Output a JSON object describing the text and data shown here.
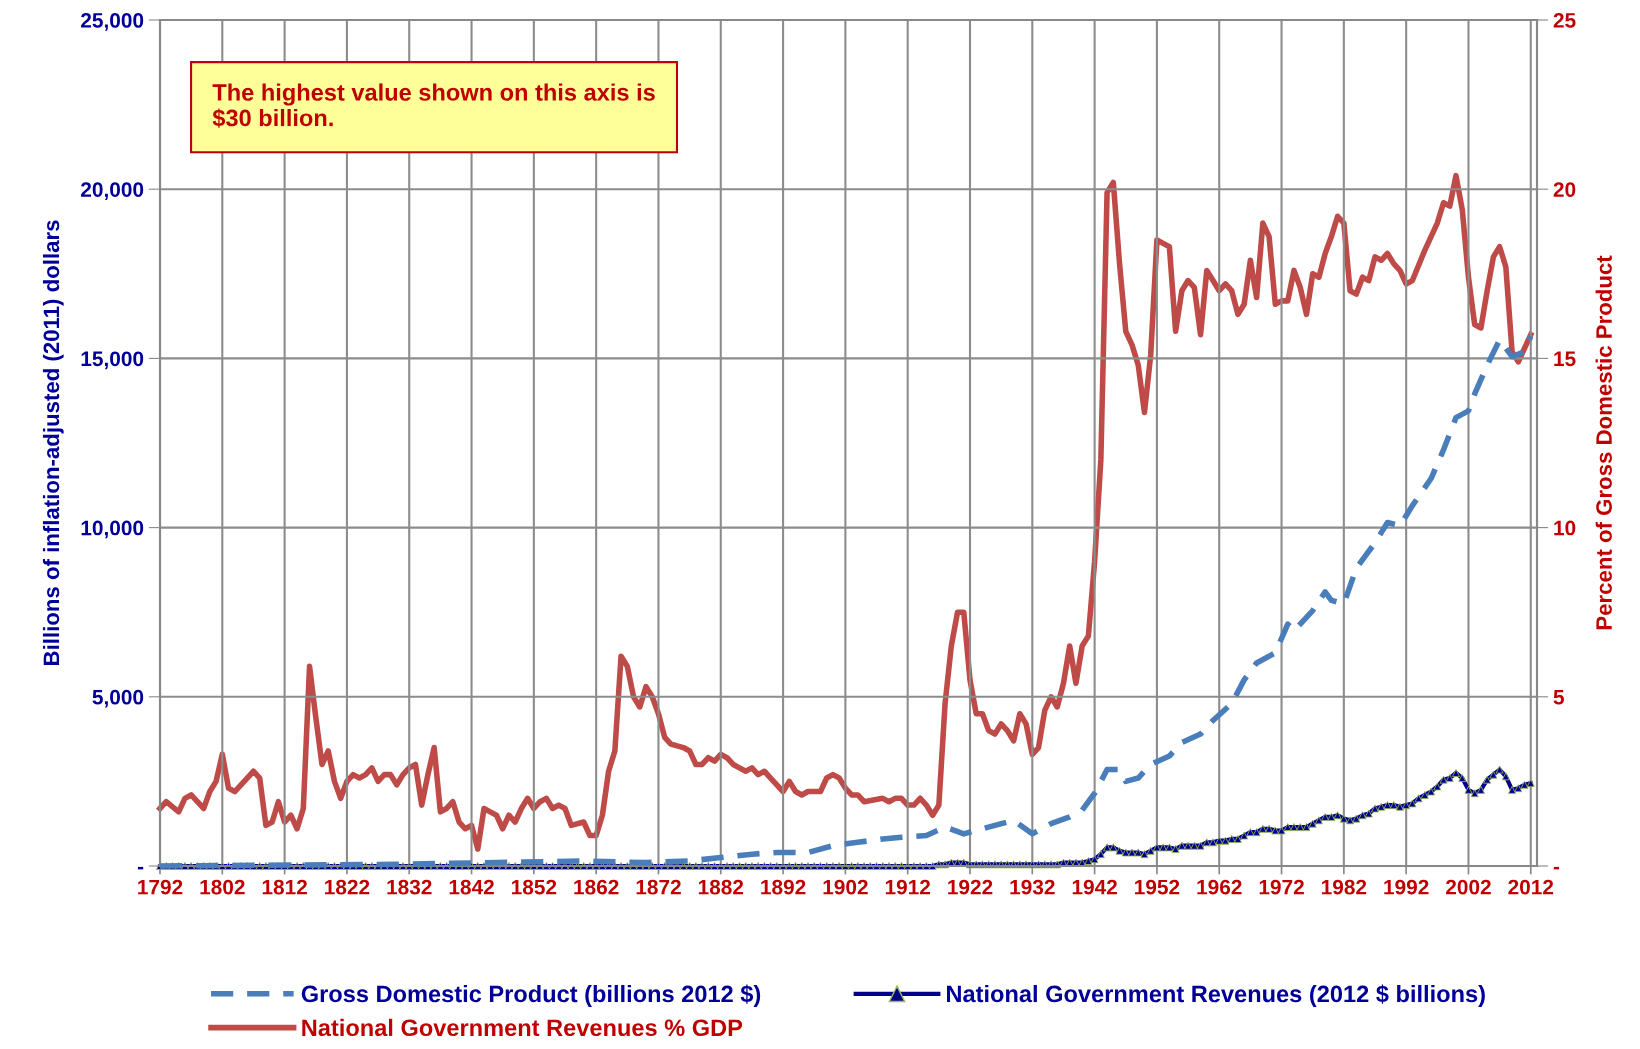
{
  "chart_data": {
    "type": "line",
    "ylabel": "Billions of inflation-adjusted (2011) dollars",
    "y2label": "Percent of Gross Domestic Product",
    "annotations": [
      "The highest value shown on this axis is $30 billion."
    ],
    "xlim": [
      1792,
      2013
    ],
    "xticks": [
      1792,
      1802,
      1812,
      1822,
      1832,
      1842,
      1852,
      1862,
      1872,
      1882,
      1892,
      1902,
      1912,
      1922,
      1932,
      1942,
      1952,
      1962,
      1972,
      1982,
      1992,
      2002,
      2012
    ],
    "ylim": [
      0,
      25000
    ],
    "yticks": [
      {
        "value": 0,
        "label": "-"
      },
      {
        "value": 5000,
        "label": "5,000"
      },
      {
        "value": 10000,
        "label": "10,000"
      },
      {
        "value": 15000,
        "label": "15,000"
      },
      {
        "value": 20000,
        "label": "20,000"
      },
      {
        "value": 25000,
        "label": "25,000"
      }
    ],
    "y2lim": [
      0,
      25
    ],
    "y2ticks": [
      {
        "value": 0,
        "label": "-"
      },
      5,
      10,
      15,
      20,
      25
    ],
    "grid": true,
    "legend": "bottom",
    "series": [
      {
        "name": "Gross Domestic Product (billions 2012 $)",
        "color": "#4a7ebb",
        "line_style": "dashed",
        "marker": "none",
        "x": [
          1792,
          1830,
          1860,
          1870,
          1877,
          1882,
          1887,
          1891,
          1896,
          1900,
          1904,
          1908,
          1911,
          1915,
          1918,
          1921,
          1926,
          1929,
          1932,
          1935,
          1938,
          1940,
          1942,
          1944,
          1946,
          1947,
          1949,
          1951,
          1954,
          1956,
          1959,
          1961,
          1964,
          1966,
          1968,
          1971,
          1973,
          1974,
          1977,
          1979,
          1980,
          1982,
          1984,
          1987,
          1989,
          1991,
          1993,
          1996,
          1998,
          2000,
          2002,
          2003,
          2005,
          2007,
          2009,
          2011,
          2012
        ],
        "values": [
          0,
          50,
          150,
          100,
          150,
          250,
          350,
          400,
          400,
          600,
          700,
          800,
          850,
          900,
          1150,
          950,
          1200,
          1350,
          950,
          1250,
          1450,
          1650,
          2150,
          2850,
          2850,
          2500,
          2600,
          3000,
          3250,
          3650,
          3900,
          4300,
          4800,
          5500,
          6000,
          6300,
          7150,
          6950,
          7550,
          8100,
          7850,
          7750,
          8800,
          9550,
          10150,
          10050,
          10650,
          11450,
          12300,
          13250,
          13450,
          13950,
          14800,
          15550,
          15050,
          15200,
          15650
        ]
      },
      {
        "name": "National Government Revenues (2012 $ billions)",
        "color": "#00008b",
        "line_style": "solid",
        "marker": "triangle",
        "x": [
          1792,
          1793,
          1794,
          1795,
          1796,
          1797,
          1798,
          1799,
          1800,
          1801,
          1802,
          1803,
          1804,
          1805,
          1806,
          1807,
          1808,
          1809,
          1810,
          1811,
          1812,
          1813,
          1814,
          1815,
          1816,
          1817,
          1818,
          1819,
          1820,
          1821,
          1822,
          1823,
          1824,
          1825,
          1826,
          1827,
          1828,
          1829,
          1830,
          1831,
          1832,
          1833,
          1834,
          1835,
          1836,
          1837,
          1838,
          1839,
          1840,
          1841,
          1842,
          1843,
          1844,
          1845,
          1846,
          1847,
          1848,
          1849,
          1850,
          1851,
          1852,
          1853,
          1854,
          1855,
          1856,
          1857,
          1858,
          1859,
          1860,
          1861,
          1862,
          1863,
          1864,
          1865,
          1866,
          1867,
          1868,
          1869,
          1870,
          1871,
          1872,
          1873,
          1874,
          1875,
          1876,
          1877,
          1878,
          1879,
          1880,
          1881,
          1882,
          1883,
          1884,
          1885,
          1886,
          1887,
          1888,
          1889,
          1890,
          1891,
          1892,
          1893,
          1894,
          1895,
          1896,
          1897,
          1898,
          1899,
          1900,
          1901,
          1902,
          1903,
          1904,
          1905,
          1906,
          1907,
          1908,
          1909,
          1910,
          1911,
          1912,
          1913,
          1914,
          1915,
          1916,
          1917,
          1918,
          1919,
          1920,
          1921,
          1922,
          1923,
          1924,
          1925,
          1926,
          1927,
          1928,
          1929,
          1930,
          1931,
          1932,
          1933,
          1934,
          1935,
          1936,
          1937,
          1938,
          1939,
          1940,
          1941,
          1942,
          1943,
          1944,
          1945,
          1946,
          1947,
          1948,
          1949,
          1950,
          1951,
          1952,
          1953,
          1954,
          1955,
          1956,
          1957,
          1958,
          1959,
          1960,
          1961,
          1962,
          1963,
          1964,
          1965,
          1966,
          1967,
          1968,
          1969,
          1970,
          1971,
          1972,
          1973,
          1974,
          1975,
          1976,
          1977,
          1978,
          1979,
          1980,
          1981,
          1982,
          1983,
          1984,
          1985,
          1986,
          1987,
          1988,
          1989,
          1990,
          1991,
          1992,
          1993,
          1994,
          1995,
          1996,
          1997,
          1998,
          1999,
          2000,
          2001,
          2002,
          2003,
          2004,
          2005,
          2006,
          2007,
          2008,
          2009,
          2010,
          2011,
          2012
        ],
        "values": [
          0,
          0,
          0,
          0,
          0,
          0,
          0,
          0,
          0,
          0,
          0,
          0,
          0,
          0,
          0,
          0,
          0,
          0,
          0,
          0,
          0,
          0,
          0,
          0,
          0,
          0,
          0,
          0,
          0,
          0,
          0,
          0,
          0,
          0,
          0,
          0,
          0,
          0,
          0,
          0,
          0,
          0,
          0,
          0,
          0,
          0,
          0,
          0,
          0,
          0,
          0,
          0,
          0,
          0,
          0,
          0,
          0,
          0,
          0,
          0,
          0,
          0,
          0,
          0,
          0,
          0,
          0,
          0,
          0,
          0,
          0,
          0,
          0,
          0,
          0,
          0,
          0,
          0,
          0,
          0,
          0,
          0,
          0,
          0,
          0,
          0,
          0,
          0,
          0,
          0,
          0,
          0,
          0,
          0,
          0,
          0,
          0,
          0,
          0,
          0,
          0,
          0,
          0,
          0,
          0,
          0,
          0,
          0,
          0,
          0,
          0,
          0,
          0,
          0,
          0,
          0,
          0,
          0,
          0,
          0,
          0,
          0,
          0,
          0,
          0,
          50,
          50,
          100,
          100,
          100,
          50,
          50,
          50,
          50,
          50,
          50,
          50,
          50,
          50,
          50,
          50,
          50,
          50,
          50,
          50,
          100,
          100,
          100,
          100,
          150,
          200,
          350,
          550,
          550,
          450,
          400,
          400,
          400,
          350,
          450,
          550,
          550,
          550,
          500,
          600,
          600,
          600,
          600,
          700,
          700,
          750,
          750,
          800,
          800,
          900,
          1000,
          1000,
          1100,
          1100,
          1050,
          1050,
          1150,
          1150,
          1150,
          1150,
          1250,
          1350,
          1450,
          1450,
          1500,
          1400,
          1350,
          1400,
          1500,
          1550,
          1700,
          1750,
          1800,
          1800,
          1750,
          1800,
          1850,
          2000,
          2100,
          2200,
          2350,
          2550,
          2600,
          2750,
          2600,
          2250,
          2150,
          2250,
          2550,
          2700,
          2850,
          2650,
          2250,
          2300,
          2400,
          2450
        ]
      },
      {
        "name": "National Government Revenues % GDP",
        "color": "#be4b48",
        "axis": "y2",
        "line_style": "solid",
        "marker": "none",
        "x": [
          1792,
          1793,
          1795,
          1796,
          1797,
          1799,
          1800,
          1801,
          1802,
          1803,
          1804,
          1805,
          1806,
          1807,
          1808,
          1809,
          1810,
          1811,
          1812,
          1813,
          1814,
          1815,
          1816,
          1817,
          1818,
          1819,
          1820,
          1821,
          1822,
          1823,
          1824,
          1825,
          1826,
          1827,
          1828,
          1829,
          1830,
          1831,
          1832,
          1833,
          1834,
          1835,
          1836,
          1837,
          1838,
          1839,
          1840,
          1841,
          1842,
          1843,
          1844,
          1845,
          1846,
          1847,
          1848,
          1849,
          1850,
          1851,
          1852,
          1853,
          1854,
          1855,
          1856,
          1857,
          1858,
          1860,
          1861,
          1862,
          1863,
          1864,
          1865,
          1866,
          1867,
          1868,
          1869,
          1870,
          1871,
          1872,
          1873,
          1874,
          1876,
          1877,
          1878,
          1879,
          1880,
          1881,
          1882,
          1883,
          1884,
          1885,
          1886,
          1887,
          1888,
          1889,
          1890,
          1891,
          1892,
          1893,
          1894,
          1895,
          1896,
          1898,
          1899,
          1900,
          1901,
          1902,
          1903,
          1904,
          1905,
          1908,
          1909,
          1910,
          1911,
          1912,
          1913,
          1914,
          1915,
          1916,
          1917,
          1918,
          1919,
          1920,
          1921,
          1922,
          1923,
          1924,
          1925,
          1926,
          1927,
          1928,
          1929,
          1930,
          1931,
          1932,
          1933,
          1934,
          1935,
          1936,
          1937,
          1938,
          1939,
          1940,
          1941,
          1942,
          1943,
          1944,
          1945,
          1946,
          1947,
          1948,
          1949,
          1950,
          1951,
          1952,
          1953,
          1954,
          1955,
          1956,
          1957,
          1958,
          1959,
          1960,
          1961,
          1962,
          1963,
          1964,
          1965,
          1966,
          1967,
          1968,
          1969,
          1970,
          1971,
          1972,
          1973,
          1974,
          1975,
          1976,
          1977,
          1978,
          1979,
          1980,
          1981,
          1982,
          1983,
          1984,
          1985,
          1986,
          1987,
          1988,
          1989,
          1990,
          1991,
          1992,
          1993,
          1995,
          1996,
          1997,
          1998,
          1999,
          2000,
          2001,
          2002,
          2003,
          2004,
          2005,
          2006,
          2007,
          2008,
          2009,
          2010,
          2011,
          2012
        ],
        "values": [
          1.7,
          1.9,
          1.6,
          2.0,
          2.1,
          1.7,
          2.2,
          2.5,
          3.3,
          2.3,
          2.2,
          2.4,
          2.6,
          2.8,
          2.6,
          1.2,
          1.3,
          1.9,
          1.3,
          1.5,
          1.1,
          1.7,
          5.9,
          4.4,
          3.0,
          3.4,
          2.5,
          2.0,
          2.5,
          2.7,
          2.6,
          2.7,
          2.9,
          2.5,
          2.7,
          2.7,
          2.4,
          2.7,
          2.9,
          3.0,
          1.8,
          2.7,
          3.5,
          1.6,
          1.7,
          1.9,
          1.3,
          1.1,
          1.2,
          0.5,
          1.7,
          1.6,
          1.5,
          1.1,
          1.5,
          1.3,
          1.7,
          2.0,
          1.7,
          1.9,
          2.0,
          1.7,
          1.8,
          1.7,
          1.2,
          1.3,
          0.9,
          0.9,
          1.5,
          2.8,
          3.4,
          6.2,
          5.9,
          5.0,
          4.7,
          5.3,
          5.0,
          4.5,
          3.8,
          3.6,
          3.5,
          3.4,
          3.0,
          3.0,
          3.2,
          3.1,
          3.3,
          3.2,
          3.0,
          2.9,
          2.8,
          2.9,
          2.7,
          2.8,
          2.6,
          2.4,
          2.2,
          2.5,
          2.2,
          2.1,
          2.2,
          2.2,
          2.6,
          2.7,
          2.6,
          2.3,
          2.1,
          2.1,
          1.9,
          2.0,
          1.9,
          2.0,
          2.0,
          1.8,
          1.8,
          2.0,
          1.8,
          1.5,
          1.8,
          4.8,
          6.5,
          7.5,
          7.5,
          5.5,
          4.5,
          4.5,
          4.0,
          3.9,
          4.2,
          4.0,
          3.7,
          4.5,
          4.2,
          3.3,
          3.5,
          4.6,
          5.0,
          4.7,
          5.4,
          6.5,
          5.4,
          6.5,
          6.8,
          9.0,
          12.0,
          19.9,
          20.2,
          17.8,
          15.8,
          15.4,
          14.8,
          13.4,
          15.1,
          18.5,
          18.4,
          18.3,
          15.8,
          17.0,
          17.3,
          17.1,
          15.7,
          17.6,
          17.3,
          17.0,
          17.2,
          17.0,
          16.3,
          16.6,
          17.9,
          16.8,
          19.0,
          18.6,
          16.6,
          16.7,
          16.7,
          17.6,
          17.1,
          16.3,
          17.5,
          17.4,
          18.1,
          18.6,
          19.2,
          19.0,
          17.0,
          16.9,
          17.4,
          17.3,
          18.0,
          17.9,
          18.1,
          17.8,
          17.6,
          17.2,
          17.3,
          18.2,
          18.6,
          19.0,
          19.6,
          19.5,
          20.4,
          19.4,
          17.4,
          16.0,
          15.9,
          17.0,
          18.0,
          18.3,
          17.7,
          15.2,
          14.9,
          15.3,
          15.7
        ]
      }
    ]
  }
}
